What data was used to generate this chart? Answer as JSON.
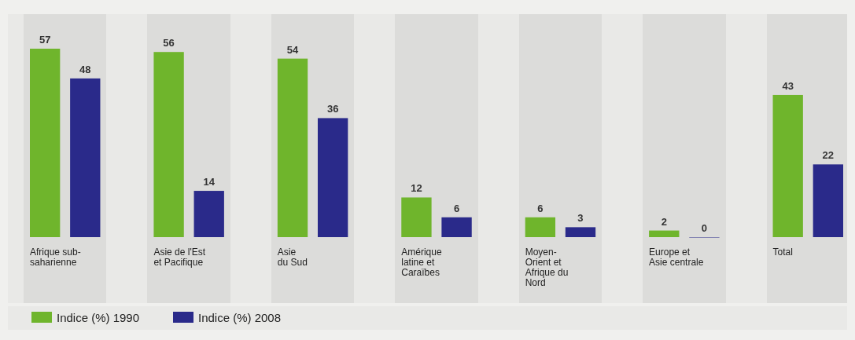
{
  "chart_data": {
    "type": "bar",
    "categories": [
      "Afrique sub-\nsaharienne",
      "Asie de l'Est\net Pacifique",
      "Asie\ndu Sud",
      "Amérique\nlatine et\nCaraïbes",
      "Moyen-\nOrient et\nAfrique du\nNord",
      "Europe et\nAsie centrale",
      "Total"
    ],
    "series": [
      {
        "name": "Indice (%) 1990",
        "color": "#6fb52c",
        "values": [
          57,
          56,
          54,
          12,
          6,
          2,
          43
        ]
      },
      {
        "name": "Indice (%) 2008",
        "color": "#2a2a8a",
        "values": [
          48,
          14,
          36,
          6,
          3,
          0,
          22
        ]
      }
    ],
    "data_labels": true,
    "legend": "bottom"
  }
}
